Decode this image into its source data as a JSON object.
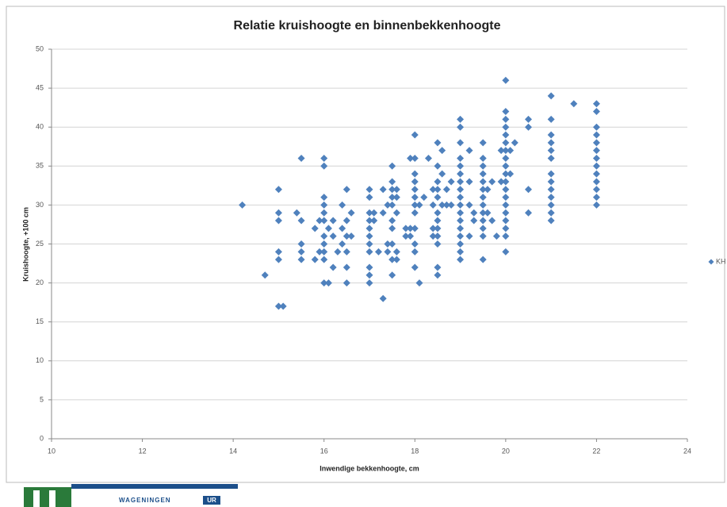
{
  "chart_data": {
    "type": "scatter",
    "title": "Relatie kruishoogte en binnenbekkenhoogte",
    "xlabel": "Inwendige bekkenhoogte, cm",
    "ylabel": "Kruishoogte, +100 cm",
    "xlim": [
      10,
      24
    ],
    "xticks": [
      10,
      12,
      14,
      16,
      18,
      20,
      22,
      24
    ],
    "ylim": [
      0,
      50
    ],
    "yticks": [
      0,
      5,
      10,
      15,
      20,
      25,
      30,
      35,
      40,
      45,
      50
    ],
    "grid": true,
    "legend": "right",
    "series": [
      {
        "name": "KH",
        "color": "#4f81bd",
        "x": [
          14.2,
          14.7,
          15,
          15,
          15,
          15,
          15,
          15,
          15.1,
          15.4,
          15.5,
          15.5,
          15.5,
          15.5,
          15.5,
          15.8,
          15.8,
          15.9,
          15.9,
          16,
          16,
          16,
          16,
          16,
          16,
          16,
          16,
          16,
          16,
          16,
          16.1,
          16.1,
          16.2,
          16.2,
          16.2,
          16.3,
          16.4,
          16.4,
          16.4,
          16.5,
          16.5,
          16.5,
          16.5,
          16.5,
          16.5,
          16.6,
          16.6,
          17,
          17,
          17,
          17,
          17,
          17,
          17,
          17,
          17,
          17,
          17,
          17.1,
          17.1,
          17.2,
          17.3,
          17.3,
          17.3,
          17.4,
          17.4,
          17.4,
          17.5,
          17.5,
          17.5,
          17.5,
          17.5,
          17.5,
          17.5,
          17.5,
          17.5,
          17.5,
          17.6,
          17.6,
          17.6,
          17.6,
          17.6,
          17.8,
          17.8,
          17.9,
          17.9,
          17.9,
          18,
          18,
          18,
          18,
          18,
          18,
          18,
          18,
          18,
          18,
          18,
          18,
          18.1,
          18.1,
          18.2,
          18.3,
          18.4,
          18.4,
          18.4,
          18.4,
          18.5,
          18.5,
          18.5,
          18.5,
          18.5,
          18.5,
          18.5,
          18.5,
          18.5,
          18.5,
          18.5,
          18.5,
          18.6,
          18.6,
          18.6,
          18.7,
          18.7,
          18.8,
          18.8,
          19,
          19,
          19,
          19,
          19,
          19,
          19,
          19,
          19,
          19,
          19,
          19,
          19,
          19,
          19,
          19,
          19,
          19.2,
          19.2,
          19.2,
          19.2,
          19.3,
          19.3,
          19.5,
          19.5,
          19.5,
          19.5,
          19.5,
          19.5,
          19.5,
          19.5,
          19.5,
          19.5,
          19.5,
          19.5,
          19.5,
          19.6,
          19.6,
          19.7,
          19.7,
          19.8,
          19.9,
          19.9,
          20,
          20,
          20,
          20,
          20,
          20,
          20,
          20,
          20,
          20,
          20,
          20,
          20,
          20,
          20,
          20,
          20,
          20,
          20,
          20.1,
          20.1,
          20.2,
          20.5,
          20.5,
          20.5,
          20.5,
          21,
          21,
          21,
          21,
          21,
          21,
          21,
          21,
          21,
          21,
          21,
          21,
          21,
          21.5,
          22,
          22,
          22,
          22,
          22,
          22,
          22,
          22,
          22,
          22,
          22,
          22,
          22
        ],
        "values": [
          30,
          21,
          32,
          29,
          28,
          24,
          23,
          17,
          17,
          29,
          36,
          28,
          25,
          24,
          23,
          27,
          23,
          28,
          24,
          36,
          35,
          31,
          30,
          29,
          28,
          26,
          25,
          24,
          23,
          20,
          20,
          27,
          28,
          26,
          22,
          24,
          30,
          27,
          25,
          32,
          28,
          26,
          24,
          22,
          20,
          29,
          26,
          32,
          31,
          29,
          28,
          27,
          26,
          25,
          24,
          22,
          21,
          20,
          29,
          28,
          24,
          32,
          29,
          18,
          30,
          25,
          24,
          35,
          33,
          32,
          31,
          30,
          28,
          27,
          25,
          23,
          21,
          32,
          31,
          29,
          24,
          23,
          27,
          26,
          36,
          27,
          26,
          39,
          36,
          34,
          33,
          32,
          31,
          30,
          29,
          27,
          25,
          24,
          22,
          20,
          30,
          31,
          36,
          32,
          30,
          27,
          26,
          38,
          35,
          33,
          32,
          31,
          29,
          28,
          27,
          26,
          25,
          22,
          21,
          37,
          34,
          30,
          32,
          30,
          30,
          33,
          41,
          40,
          38,
          36,
          35,
          34,
          33,
          32,
          31,
          30,
          29,
          28,
          27,
          26,
          25,
          24,
          23,
          37,
          33,
          30,
          26,
          29,
          28,
          38,
          36,
          35,
          34,
          33,
          32,
          31,
          30,
          29,
          28,
          27,
          26,
          23,
          32,
          29,
          33,
          28,
          26,
          37,
          33,
          46,
          42,
          41,
          40,
          39,
          38,
          37,
          36,
          35,
          34,
          33,
          32,
          31,
          30,
          29,
          28,
          27,
          26,
          24,
          37,
          34,
          38,
          41,
          40,
          32,
          29,
          44,
          41,
          39,
          38,
          37,
          36,
          34,
          33,
          32,
          31,
          30,
          29,
          28,
          43,
          43,
          42,
          40,
          39,
          38,
          37,
          36,
          35,
          34,
          33,
          32,
          31,
          30
        ]
      }
    ]
  },
  "footer": {
    "logo_text": "WAGENINGEN",
    "logo_badge": "UR"
  }
}
